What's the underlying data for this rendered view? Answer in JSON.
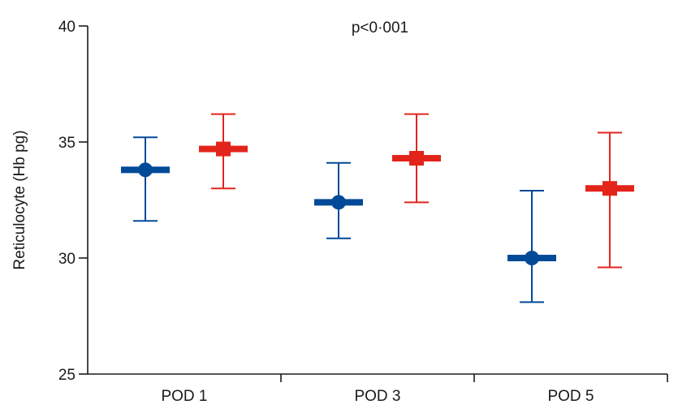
{
  "chart_data": {
    "type": "scatter",
    "annotation": "p<0·001",
    "ylabel": "Reticulocyte (Hb pg)",
    "xlabel": "",
    "ylim": [
      25,
      40
    ],
    "yticks": [
      25,
      30,
      35,
      40
    ],
    "categories": [
      "POD 1",
      "POD 3",
      "POD 5"
    ],
    "series": [
      {
        "marker": "circle",
        "color": "#004a98",
        "values": [
          33.8,
          32.4,
          30.0
        ],
        "lower": [
          31.6,
          30.85,
          28.1
        ],
        "upper": [
          35.2,
          34.1,
          32.9
        ]
      },
      {
        "marker": "square",
        "color": "#e3241b",
        "values": [
          34.7,
          34.3,
          33.0
        ],
        "lower": [
          33.0,
          32.4,
          29.6
        ],
        "upper": [
          36.2,
          36.2,
          35.4
        ]
      }
    ]
  }
}
